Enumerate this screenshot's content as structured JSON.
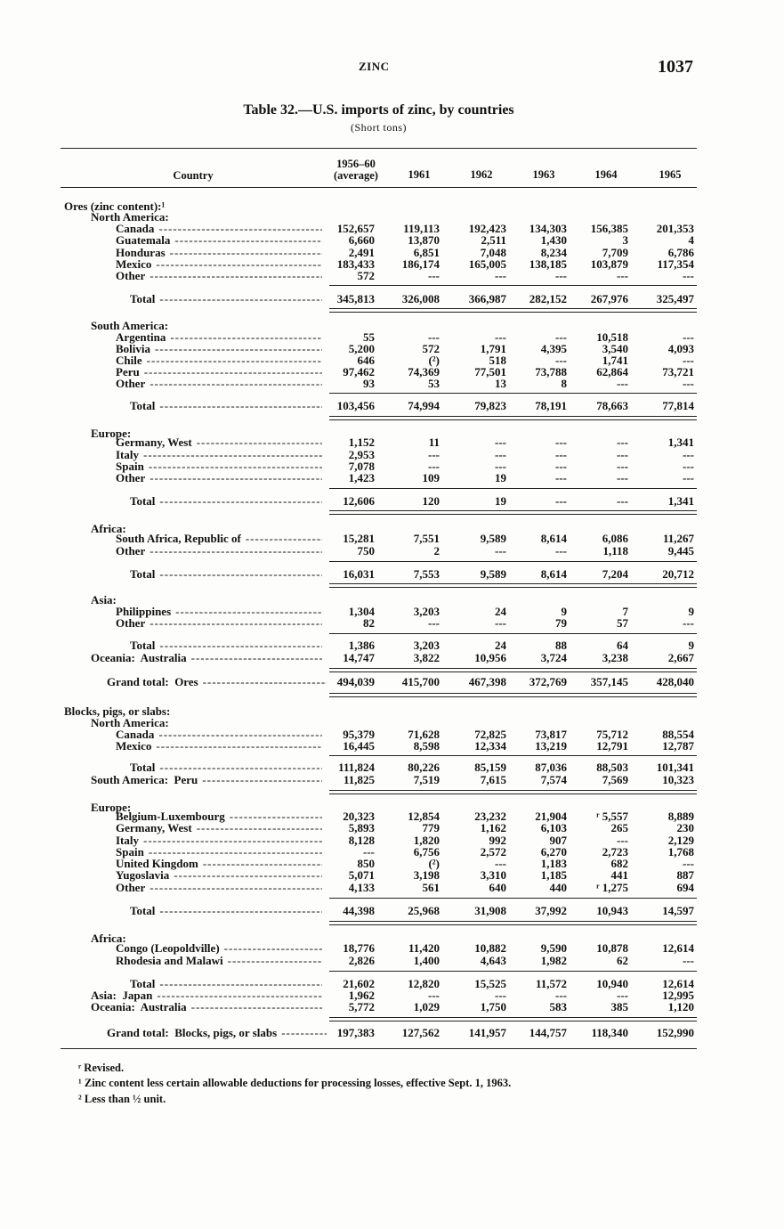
{
  "running_head": "ZINC",
  "page_number": "1037",
  "title": "Table 32.—U.S. imports of zinc, by countries",
  "subtitle": "(Short tons)",
  "columns": {
    "country": "Country",
    "c0_line1": "1956–60",
    "c0_line2": "(average)",
    "years": [
      "1961",
      "1962",
      "1963",
      "1964",
      "1965"
    ]
  },
  "rows": [
    {
      "kind": "heading",
      "level": 0,
      "label": "Ores (zinc content):¹",
      "values": []
    },
    {
      "kind": "heading",
      "level": 1,
      "label": "North America:",
      "values": []
    },
    {
      "kind": "item",
      "level": 2,
      "label": "Canada",
      "values": [
        "152,657",
        "119,113",
        "192,423",
        "134,303",
        "156,385",
        "201,353"
      ]
    },
    {
      "kind": "item",
      "level": 2,
      "label": "Guatemala",
      "values": [
        "6,660",
        "13,870",
        "2,511",
        "1,430",
        "3",
        "4"
      ]
    },
    {
      "kind": "item",
      "level": 2,
      "label": "Honduras",
      "values": [
        "2,491",
        "6,851",
        "7,048",
        "8,234",
        "7,709",
        "6,786"
      ]
    },
    {
      "kind": "item",
      "level": 2,
      "label": "Mexico",
      "values": [
        "183,433",
        "186,174",
        "165,005",
        "138,185",
        "103,879",
        "117,354"
      ]
    },
    {
      "kind": "item",
      "level": 2,
      "label": "Other",
      "values": [
        "572",
        "---",
        "---",
        "---",
        "---",
        "---"
      ]
    },
    {
      "kind": "total",
      "level": 3,
      "label": "Total",
      "values": [
        "345,813",
        "326,008",
        "366,987",
        "282,152",
        "267,976",
        "325,497"
      ]
    },
    {
      "kind": "heading",
      "level": 1,
      "label": "South America:",
      "values": []
    },
    {
      "kind": "item",
      "level": 2,
      "label": "Argentina",
      "values": [
        "55",
        "---",
        "---",
        "---",
        "10,518",
        "---"
      ]
    },
    {
      "kind": "item",
      "level": 2,
      "label": "Bolivia",
      "values": [
        "5,200",
        "572",
        "1,791",
        "4,395",
        "3,540",
        "4,093"
      ]
    },
    {
      "kind": "item",
      "level": 2,
      "label": "Chile",
      "values": [
        "646",
        "(²)",
        "518",
        "---",
        "1,741",
        "---"
      ]
    },
    {
      "kind": "item",
      "level": 2,
      "label": "Peru",
      "values": [
        "97,462",
        "74,369",
        "77,501",
        "73,788",
        "62,864",
        "73,721"
      ]
    },
    {
      "kind": "item",
      "level": 2,
      "label": "Other",
      "values": [
        "93",
        "53",
        "13",
        "8",
        "---",
        "---"
      ]
    },
    {
      "kind": "total",
      "level": 3,
      "label": "Total",
      "values": [
        "103,456",
        "74,994",
        "79,823",
        "78,191",
        "78,663",
        "77,814"
      ]
    },
    {
      "kind": "heading",
      "level": 1,
      "label": "Europe:",
      "values": []
    },
    {
      "kind": "item",
      "level": 2,
      "label": "Germany, West",
      "values": [
        "1,152",
        "11",
        "---",
        "---",
        "---",
        "1,341"
      ]
    },
    {
      "kind": "item",
      "level": 2,
      "label": "Italy",
      "values": [
        "2,953",
        "---",
        "---",
        "---",
        "---",
        "---"
      ]
    },
    {
      "kind": "item",
      "level": 2,
      "label": "Spain",
      "values": [
        "7,078",
        "---",
        "---",
        "---",
        "---",
        "---"
      ]
    },
    {
      "kind": "item",
      "level": 2,
      "label": "Other",
      "values": [
        "1,423",
        "109",
        "19",
        "---",
        "---",
        "---"
      ]
    },
    {
      "kind": "total",
      "level": 3,
      "label": "Total",
      "values": [
        "12,606",
        "120",
        "19",
        "---",
        "---",
        "1,341"
      ]
    },
    {
      "kind": "heading",
      "level": 1,
      "label": "Africa:",
      "values": []
    },
    {
      "kind": "item",
      "level": 2,
      "label": "South Africa, Republic of",
      "values": [
        "15,281",
        "7,551",
        "9,589",
        "8,614",
        "6,086",
        "11,267"
      ]
    },
    {
      "kind": "item",
      "level": 2,
      "label": "Other",
      "values": [
        "750",
        "2",
        "---",
        "---",
        "1,118",
        "9,445"
      ]
    },
    {
      "kind": "total",
      "level": 3,
      "label": "Total",
      "values": [
        "16,031",
        "7,553",
        "9,589",
        "8,614",
        "7,204",
        "20,712"
      ]
    },
    {
      "kind": "heading",
      "level": 1,
      "label": "Asia:",
      "values": []
    },
    {
      "kind": "item",
      "level": 2,
      "label": "Philippines",
      "values": [
        "1,304",
        "3,203",
        "24",
        "9",
        "7",
        "9"
      ]
    },
    {
      "kind": "item",
      "level": 2,
      "label": "Other",
      "values": [
        "82",
        "---",
        "---",
        "79",
        "57",
        "---"
      ]
    },
    {
      "kind": "total",
      "level": 3,
      "label": "Total",
      "values": [
        "1,386",
        "3,203",
        "24",
        "88",
        "64",
        "9"
      ]
    },
    {
      "kind": "item",
      "level": 1,
      "label": "Oceania:  Australia",
      "values": [
        "14,747",
        "3,822",
        "10,956",
        "3,724",
        "3,238",
        "2,667"
      ]
    },
    {
      "kind": "grand_total",
      "level": 4,
      "label": "Grand total:  Ores",
      "values": [
        "494,039",
        "415,700",
        "467,398",
        "372,769",
        "357,145",
        "428,040"
      ]
    },
    {
      "kind": "heading",
      "level": 0,
      "label": "Blocks, pigs, or slabs:",
      "values": []
    },
    {
      "kind": "heading",
      "level": 1,
      "label": "North America:",
      "values": []
    },
    {
      "kind": "item",
      "level": 2,
      "label": "Canada",
      "values": [
        "95,379",
        "71,628",
        "72,825",
        "73,817",
        "75,712",
        "88,554"
      ]
    },
    {
      "kind": "item",
      "level": 2,
      "label": "Mexico",
      "values": [
        "16,445",
        "8,598",
        "12,334",
        "13,219",
        "12,791",
        "12,787"
      ]
    },
    {
      "kind": "total",
      "level": 3,
      "label": "Total",
      "values": [
        "111,824",
        "80,226",
        "85,159",
        "87,036",
        "88,503",
        "101,341"
      ]
    },
    {
      "kind": "item",
      "level": 1,
      "label": "South America:  Peru",
      "values": [
        "11,825",
        "7,519",
        "7,615",
        "7,574",
        "7,569",
        "10,323"
      ]
    },
    {
      "kind": "heading",
      "level": 1,
      "label": "Europe:",
      "values": []
    },
    {
      "kind": "item",
      "level": 2,
      "label": "Belgium-Luxembourg",
      "values": [
        "20,323",
        "12,854",
        "23,232",
        "21,904",
        "ʳ 5,557",
        "8,889"
      ]
    },
    {
      "kind": "item",
      "level": 2,
      "label": "Germany, West",
      "values": [
        "5,893",
        "779",
        "1,162",
        "6,103",
        "265",
        "230"
      ]
    },
    {
      "kind": "item",
      "level": 2,
      "label": "Italy",
      "values": [
        "8,128",
        "1,820",
        "992",
        "907",
        "---",
        "2,129"
      ]
    },
    {
      "kind": "item",
      "level": 2,
      "label": "Spain",
      "values": [
        "---",
        "6,756",
        "2,572",
        "6,270",
        "2,723",
        "1,768"
      ]
    },
    {
      "kind": "item",
      "level": 2,
      "label": "United Kingdom",
      "values": [
        "850",
        "(²)",
        "---",
        "1,183",
        "682",
        "---"
      ]
    },
    {
      "kind": "item",
      "level": 2,
      "label": "Yugoslavia",
      "values": [
        "5,071",
        "3,198",
        "3,310",
        "1,185",
        "441",
        "887"
      ]
    },
    {
      "kind": "item",
      "level": 2,
      "label": "Other",
      "values": [
        "4,133",
        "561",
        "640",
        "440",
        "ʳ 1,275",
        "694"
      ]
    },
    {
      "kind": "total",
      "level": 3,
      "label": "Total",
      "values": [
        "44,398",
        "25,968",
        "31,908",
        "37,992",
        "10,943",
        "14,597"
      ]
    },
    {
      "kind": "heading",
      "level": 1,
      "label": "Africa:",
      "values": []
    },
    {
      "kind": "item",
      "level": 2,
      "label": "Congo (Leopoldville)",
      "values": [
        "18,776",
        "11,420",
        "10,882",
        "9,590",
        "10,878",
        "12,614"
      ]
    },
    {
      "kind": "item",
      "level": 2,
      "label": "Rhodesia and Malawi",
      "values": [
        "2,826",
        "1,400",
        "4,643",
        "1,982",
        "62",
        "---"
      ]
    },
    {
      "kind": "total",
      "level": 3,
      "label": "Total",
      "values": [
        "21,602",
        "12,820",
        "15,525",
        "11,572",
        "10,940",
        "12,614"
      ]
    },
    {
      "kind": "item",
      "level": 1,
      "label": "Asia:  Japan",
      "values": [
        "1,962",
        "---",
        "---",
        "---",
        "---",
        "12,995"
      ]
    },
    {
      "kind": "item",
      "level": 1,
      "label": "Oceania:  Australia",
      "values": [
        "5,772",
        "1,029",
        "1,750",
        "583",
        "385",
        "1,120"
      ]
    },
    {
      "kind": "grand_total",
      "level": 4,
      "label": "Grand total:  Blocks, pigs, or slabs",
      "values": [
        "197,383",
        "127,562",
        "141,957",
        "144,757",
        "118,340",
        "152,990"
      ]
    }
  ],
  "footnotes": [
    "ʳ Revised.",
    "¹ Zinc content less certain allowable deductions for processing losses, effective Sept. 1, 1963.",
    "² Less than ½ unit."
  ]
}
